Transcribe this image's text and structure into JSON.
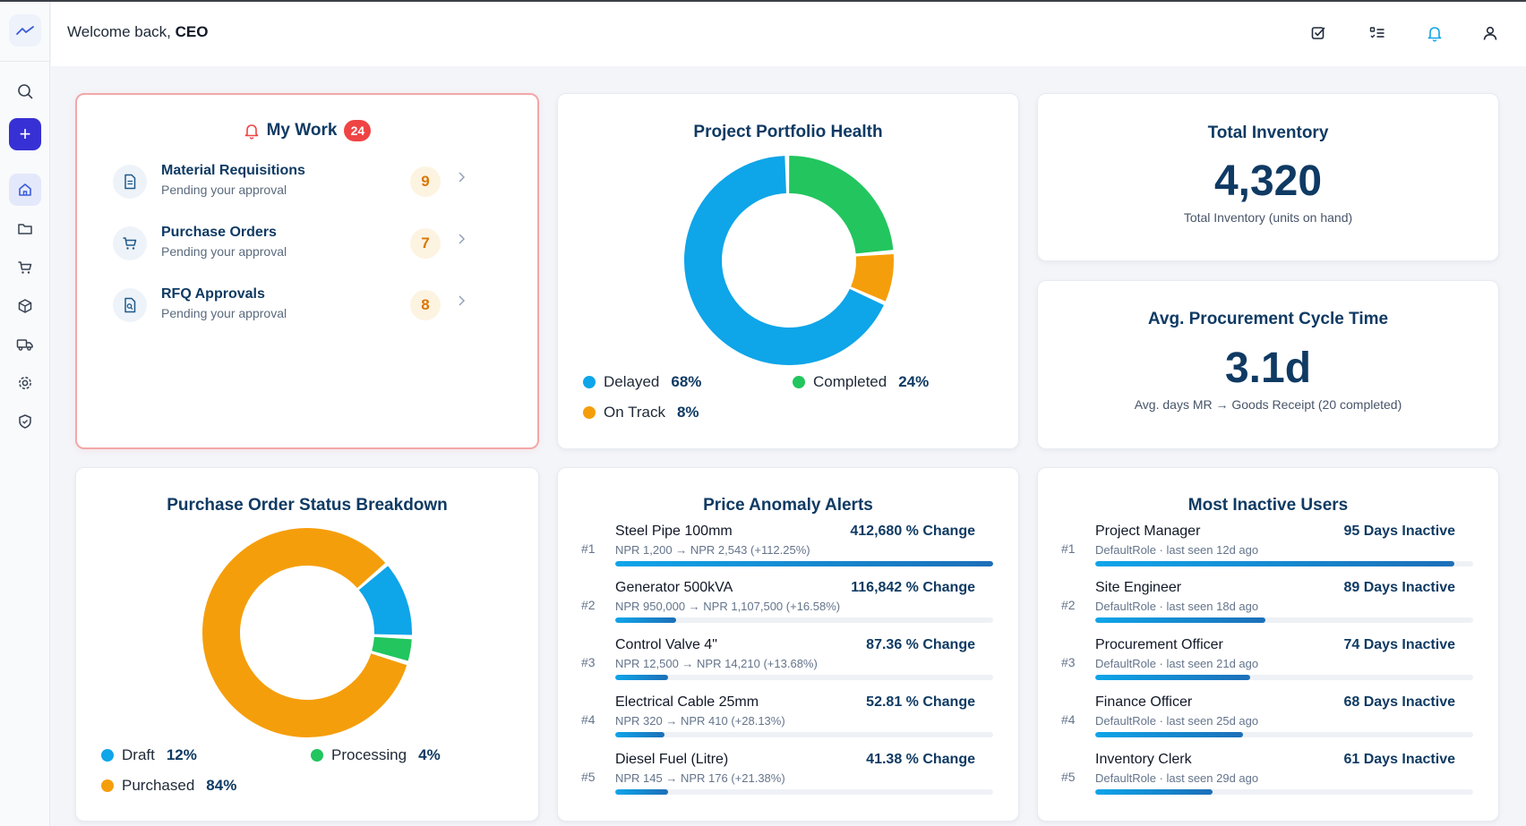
{
  "header": {
    "welcome_prefix": "Welcome back,",
    "welcome_name": "CEO",
    "icons": [
      "task-check-icon",
      "checklist-icon",
      "bell-icon",
      "user-icon"
    ]
  },
  "sidebar": {
    "items": [
      "chart-logo-icon",
      "search-icon",
      "plus-icon",
      "home-icon",
      "folder-icon",
      "cart-icon",
      "box-icon",
      "truck-icon",
      "gear-icon",
      "shield-icon"
    ],
    "add_label": "+"
  },
  "my_work": {
    "title": "My Work",
    "badge": "24",
    "items": [
      {
        "name": "Material Requisitions",
        "sub": "Pending your approval",
        "count": "9",
        "icon": "document-icon"
      },
      {
        "name": "Purchase Orders",
        "sub": "Pending your approval",
        "count": "7",
        "icon": "cart-icon"
      },
      {
        "name": "RFQ Approvals",
        "sub": "Pending your approval",
        "count": "8",
        "icon": "file-search-icon"
      }
    ]
  },
  "portfolio": {
    "title": "Project Portfolio Health",
    "chart_data": {
      "type": "pie",
      "title": "Project Portfolio Health",
      "categories": [
        "Delayed",
        "Completed",
        "On Track"
      ],
      "values": [
        68,
        24,
        8
      ],
      "labels": [
        "68%",
        "24%",
        "8%"
      ],
      "colors": [
        "#0ea5e9",
        "#22c55e",
        "#f59e0b"
      ],
      "legend": "bottom"
    }
  },
  "inventory": {
    "title": "Total Inventory",
    "value": "4,320",
    "sub": "Total Inventory (units on hand)"
  },
  "cycle": {
    "title": "Avg. Procurement Cycle Time",
    "value": "3.1d",
    "sub": "Avg. days MR → Goods Receipt (20 completed)"
  },
  "po_status": {
    "title": "Purchase Order Status Breakdown",
    "chart_data": {
      "type": "pie",
      "title": "Purchase Order Status Breakdown",
      "categories": [
        "Draft",
        "Processing",
        "Purchased"
      ],
      "values": [
        12,
        4,
        84
      ],
      "labels": [
        "12%",
        "4%",
        "84%"
      ],
      "colors": [
        "#0ea5e9",
        "#22c55e",
        "#f59e0b"
      ],
      "legend": "bottom"
    }
  },
  "anomalies": {
    "title": "Price Anomaly Alerts",
    "items": [
      {
        "rank": "#1",
        "name": "Steel Pipe 100mm",
        "meta": "NPR 1,200 → NPR 2,543 (+112.25%)",
        "change": "412,680 % Change",
        "bar": 1.0
      },
      {
        "rank": "#2",
        "name": "Generator 500kVA",
        "meta": "NPR 950,000 → NPR 1,107,500 (+16.58%)",
        "change": "116,842 % Change",
        "bar": 0.16
      },
      {
        "rank": "#3",
        "name": "Control Valve 4\"",
        "meta": "NPR 12,500 → NPR 14,210 (+13.68%)",
        "change": "87.36 % Change",
        "bar": 0.14
      },
      {
        "rank": "#4",
        "name": "Electrical Cable 25mm",
        "meta": "NPR 320 → NPR 410 (+28.13%)",
        "change": "52.81 % Change",
        "bar": 0.13
      },
      {
        "rank": "#5",
        "name": "Diesel Fuel (Litre)",
        "meta": "NPR 145 → NPR 176 (+21.38%)",
        "change": "41.38 % Change",
        "bar": 0.14
      }
    ]
  },
  "inactive": {
    "title": "Most Inactive Users",
    "items": [
      {
        "rank": "#1",
        "name": "Project Manager",
        "meta": "DefaultRole · last seen 12d ago",
        "days": "95 Days Inactive",
        "bar": 0.95
      },
      {
        "rank": "#2",
        "name": "Site Engineer",
        "meta": "DefaultRole · last seen 18d ago",
        "days": "89 Days Inactive",
        "bar": 0.45
      },
      {
        "rank": "#3",
        "name": "Procurement Officer",
        "meta": "DefaultRole · last seen 21d ago",
        "days": "74 Days Inactive",
        "bar": 0.41
      },
      {
        "rank": "#4",
        "name": "Finance Officer",
        "meta": "DefaultRole · last seen 25d ago",
        "days": "68 Days Inactive",
        "bar": 0.39
      },
      {
        "rank": "#5",
        "name": "Inventory Clerk",
        "meta": "DefaultRole · last seen 29d ago",
        "days": "61 Days Inactive",
        "bar": 0.31
      }
    ]
  }
}
